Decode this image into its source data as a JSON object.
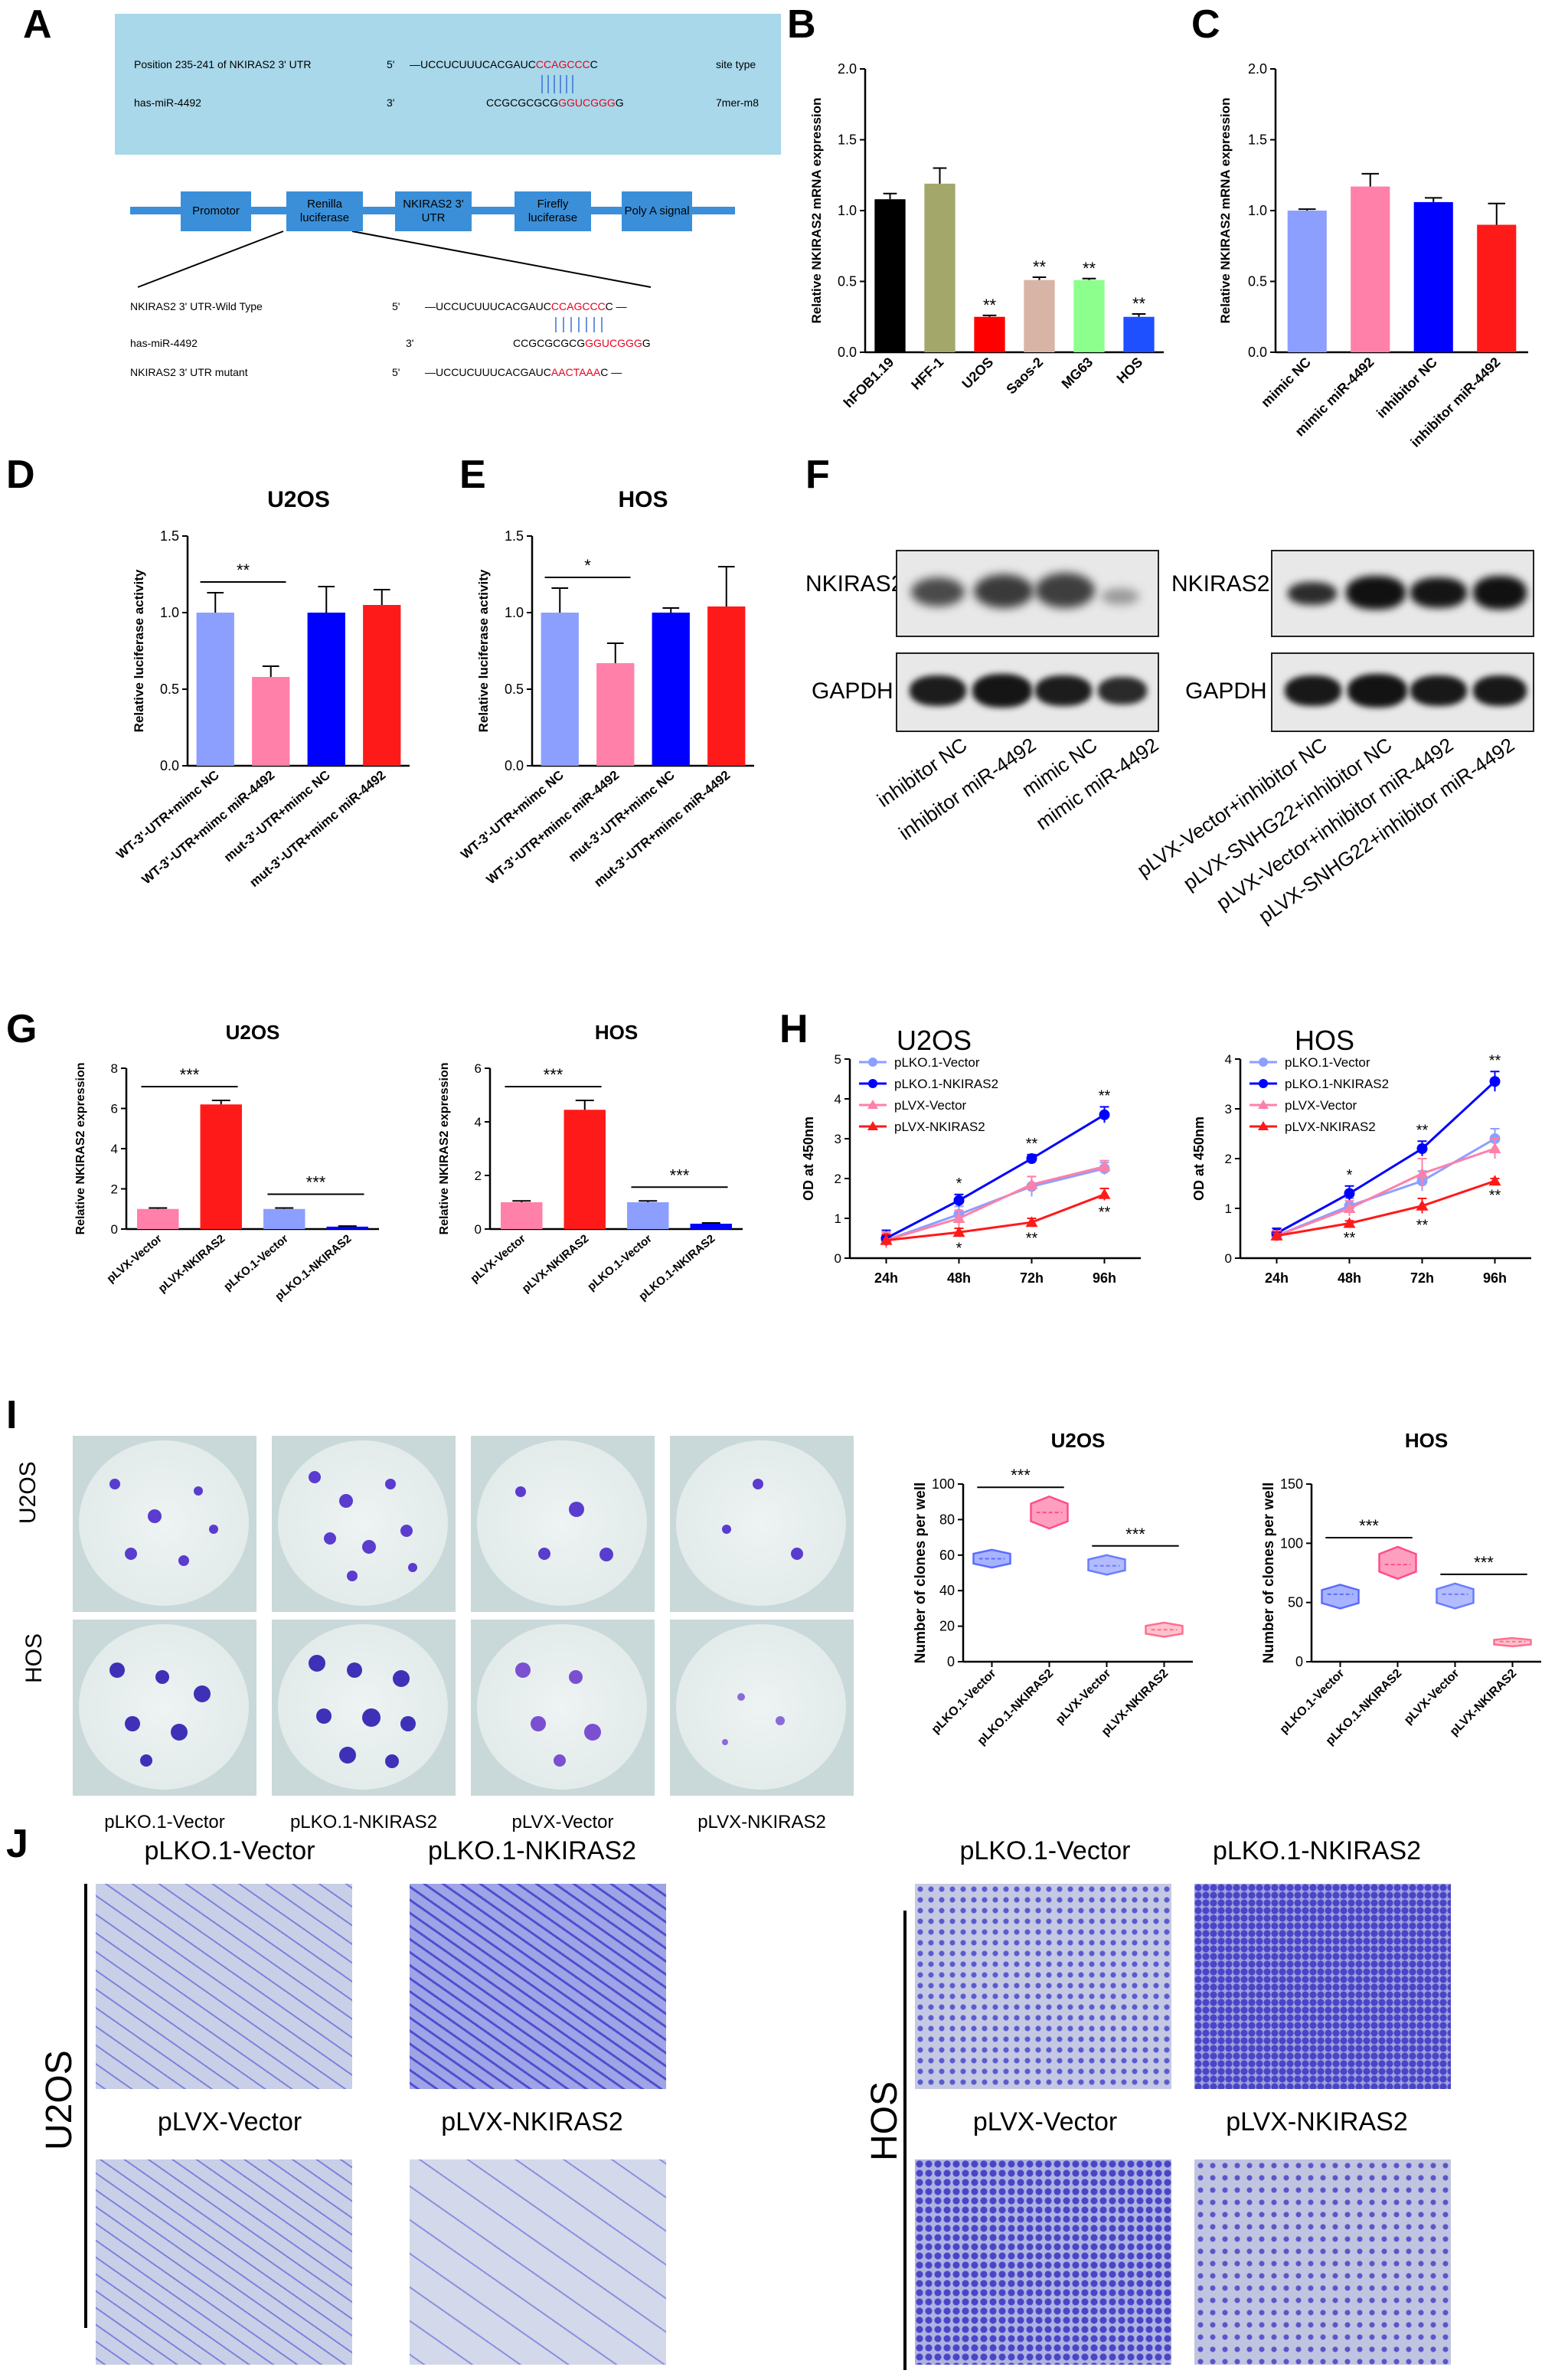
{
  "panel_labels": [
    "A",
    "B",
    "C",
    "D",
    "E",
    "F",
    "G",
    "H",
    "I",
    "J"
  ],
  "panelA": {
    "box_row1": {
      "label": "Position 235-241 of NKIRAS2  3' UTR",
      "end": "5'",
      "seq_black": "—UCCUCUUUCACGAUC",
      "seq_red": "CCAGCCC",
      "seq_tail": "C",
      "site_type": "site type"
    },
    "box_row2": {
      "label": "has-miR-4492",
      "end": "3'",
      "seq_black": "CCGCGCGCG",
      "seq_red": "GGUCGGG",
      "seq_tail": "G",
      "site_type": "7mer-m8"
    },
    "construct_blocks": [
      "Promotor",
      "Renilla luciferase",
      "NKIRAS2 3' UTR",
      "Firefly luciferase",
      "Poly A signal"
    ],
    "rows": [
      {
        "label": "NKIRAS2  3'  UTR-Wild Type",
        "end": "5'",
        "seq_black": "—UCCUCUUUCACGAUC",
        "seq_red": "CCAGCCC",
        "seq_tail": "C —"
      },
      {
        "label": "has-miR-4492",
        "end": "3'",
        "seq_black": "CCGCGCGCG",
        "seq_red": "GGUCGGG",
        "seq_tail": "G"
      },
      {
        "label": "NKIRAS2  3'  UTR mutant",
        "end": "5'",
        "seq_black": "—UCCUCUUUCACGAUC",
        "seq_red": "AACTAAA",
        "seq_tail": "C —"
      }
    ]
  },
  "chart_data": [
    {
      "id": "B",
      "type": "bar",
      "ylabel": "Relative NKIRAS2 mRNA expression",
      "ylim": [
        0,
        2.0
      ],
      "yticks": [
        0,
        0.5,
        1.0,
        1.5,
        2.0
      ],
      "categories": [
        "hFOB1.19",
        "HFF-1",
        "U2OS",
        "Saos-2",
        "MG63",
        "HOS"
      ],
      "values": [
        1.08,
        1.19,
        0.25,
        0.51,
        0.51,
        0.25
      ],
      "errors": [
        0.04,
        0.11,
        0.01,
        0.02,
        0.01,
        0.02
      ],
      "colors": [
        "#000000",
        "#a3a86a",
        "#ff0000",
        "#d8b4a7",
        "#8cff8c",
        "#1e50ff"
      ],
      "annotations": [
        "",
        "",
        "**",
        "**",
        "**",
        "**"
      ]
    },
    {
      "id": "C",
      "type": "bar",
      "ylabel": "Relative NKIRAS2 mRNA expression",
      "ylim": [
        0,
        2.0
      ],
      "yticks": [
        0,
        0.5,
        1.0,
        1.5,
        2.0
      ],
      "categories": [
        "mimic NC",
        "mimic miR-4492",
        "inhibitor NC",
        "inhibitor miR-4492"
      ],
      "values": [
        1.0,
        1.17,
        1.06,
        0.9
      ],
      "errors": [
        0.01,
        0.09,
        0.03,
        0.15
      ],
      "colors": [
        "#8c9fff",
        "#ff80a8",
        "#0000ff",
        "#ff1a1a"
      ],
      "annotations": [
        "",
        "",
        "",
        ""
      ]
    },
    {
      "id": "D",
      "type": "bar",
      "title": "U2OS",
      "ylabel": "Relative luciferase activity",
      "ylim": [
        0,
        1.5
      ],
      "yticks": [
        0.0,
        0.5,
        1.0,
        1.5
      ],
      "categories": [
        "WT-3'-UTR+mimc NC",
        "WT-3'-UTR+mimc miR-4492",
        "mut-3'-UTR+mimc NC",
        "mut-3'-UTR+mimc miR-4492"
      ],
      "values": [
        1.0,
        0.58,
        1.0,
        1.05
      ],
      "errors": [
        0.13,
        0.07,
        0.17,
        0.1
      ],
      "colors": [
        "#8c9fff",
        "#ff80a8",
        "#0000ff",
        "#ff1a1a"
      ],
      "bracket": {
        "from": 0,
        "to": 1,
        "label": "**"
      }
    },
    {
      "id": "E",
      "type": "bar",
      "title": "HOS",
      "ylabel": "Relative luciferase activity",
      "ylim": [
        0,
        1.5
      ],
      "yticks": [
        0.0,
        0.5,
        1.0,
        1.5
      ],
      "categories": [
        "WT-3'-UTR+mimc NC",
        "WT-3'-UTR+mimc miR-4492",
        "mut-3'-UTR+mimc NC",
        "mut-3'-UTR+mimc miR-4492"
      ],
      "values": [
        1.0,
        0.67,
        1.0,
        1.04
      ],
      "errors": [
        0.16,
        0.13,
        0.03,
        0.26
      ],
      "colors": [
        "#8c9fff",
        "#ff80a8",
        "#0000ff",
        "#ff1a1a"
      ],
      "bracket": {
        "from": 0,
        "to": 1,
        "label": "*"
      }
    },
    {
      "id": "G1",
      "type": "bar",
      "title": "U2OS",
      "ylabel": "Relative NKIRAS2 expression",
      "ylim": [
        0,
        8
      ],
      "yticks": [
        0,
        2,
        4,
        6,
        8
      ],
      "categories": [
        "pLVX-Vector",
        "pLVX-NKIRAS2",
        "pLKO.1-Vector",
        "pLKO.1-NKIRAS2"
      ],
      "values": [
        1.0,
        6.2,
        1.0,
        0.12
      ],
      "errors": [
        0.05,
        0.2,
        0.05,
        0.03
      ],
      "colors": [
        "#ff80a8",
        "#ff1a1a",
        "#8c9fff",
        "#0000ff"
      ],
      "brackets": [
        {
          "from": 0,
          "to": 1,
          "label": "***"
        },
        {
          "from": 2,
          "to": 3,
          "label": "***"
        }
      ]
    },
    {
      "id": "G2",
      "type": "bar",
      "title": "HOS",
      "ylabel": "Relative NKIRAS2 expression",
      "ylim": [
        0,
        6
      ],
      "yticks": [
        0,
        2,
        4,
        6
      ],
      "categories": [
        "pLVX-Vector",
        "pLVX-NKIRAS2",
        "pLKO.1-Vector",
        "pLKO.1-NKIRAS2"
      ],
      "values": [
        1.0,
        4.45,
        1.0,
        0.2
      ],
      "errors": [
        0.05,
        0.35,
        0.05,
        0.03
      ],
      "colors": [
        "#ff80a8",
        "#ff1a1a",
        "#8c9fff",
        "#0000ff"
      ],
      "brackets": [
        {
          "from": 0,
          "to": 1,
          "label": "***"
        },
        {
          "from": 2,
          "to": 3,
          "label": "***"
        }
      ]
    },
    {
      "id": "H1",
      "type": "line",
      "title": "U2OS",
      "ylabel": "OD at 450nm",
      "ylim": [
        0,
        5
      ],
      "yticks": [
        0,
        1,
        2,
        3,
        4,
        5
      ],
      "x": [
        "24h",
        "48h",
        "72h",
        "96h"
      ],
      "series": [
        {
          "name": "pLKO.1-Vector",
          "color": "#8c9fff",
          "marker": "circle",
          "values": [
            0.45,
            1.1,
            1.8,
            2.25
          ],
          "errors": [
            0.2,
            0.2,
            0.25,
            0.15
          ]
        },
        {
          "name": "pLKO.1-NKIRAS2",
          "color": "#0000ff",
          "marker": "circle",
          "values": [
            0.5,
            1.45,
            2.5,
            3.6
          ],
          "errors": [
            0.2,
            0.15,
            0.1,
            0.2
          ]
        },
        {
          "name": "pLVX-Vector",
          "color": "#ff80a8",
          "marker": "triangle",
          "values": [
            0.45,
            1.0,
            1.85,
            2.3
          ],
          "errors": [
            0.2,
            0.2,
            0.2,
            0.15
          ]
        },
        {
          "name": "pLVX-NKIRAS2",
          "color": "#ff1a1a",
          "marker": "triangle",
          "values": [
            0.45,
            0.65,
            0.9,
            1.6
          ],
          "errors": [
            0.15,
            0.1,
            0.1,
            0.15
          ]
        }
      ],
      "annot_top": [
        "",
        "*",
        "**",
        "**"
      ],
      "annot_bottom": [
        "",
        "*",
        "**",
        "**"
      ]
    },
    {
      "id": "H2",
      "type": "line",
      "title": "HOS",
      "ylabel": "OD at 450nm",
      "ylim": [
        0,
        4
      ],
      "yticks": [
        0,
        1,
        2,
        3,
        4
      ],
      "x": [
        "24h",
        "48h",
        "72h",
        "96h"
      ],
      "series": [
        {
          "name": "pLKO.1-Vector",
          "color": "#8c9fff",
          "marker": "circle",
          "values": [
            0.45,
            1.05,
            1.55,
            2.4
          ],
          "errors": [
            0.1,
            0.15,
            0.2,
            0.2
          ]
        },
        {
          "name": "pLKO.1-NKIRAS2",
          "color": "#0000ff",
          "marker": "circle",
          "values": [
            0.5,
            1.3,
            2.2,
            3.55
          ],
          "errors": [
            0.1,
            0.15,
            0.15,
            0.2
          ]
        },
        {
          "name": "pLVX-Vector",
          "color": "#ff80a8",
          "marker": "triangle",
          "values": [
            0.45,
            1.0,
            1.7,
            2.2
          ],
          "errors": [
            0.1,
            0.15,
            0.3,
            0.2
          ]
        },
        {
          "name": "pLVX-NKIRAS2",
          "color": "#ff1a1a",
          "marker": "triangle",
          "values": [
            0.45,
            0.7,
            1.05,
            1.55
          ],
          "errors": [
            0.05,
            0.05,
            0.15,
            0.05
          ]
        }
      ],
      "annot_top": [
        "",
        "*",
        "**",
        "**"
      ],
      "annot_bottom": [
        "",
        "**",
        "**",
        "**"
      ]
    },
    {
      "id": "I1",
      "type": "violin",
      "title": "U2OS",
      "ylabel": "Number of clones per well",
      "ylim": [
        0,
        100
      ],
      "yticks": [
        0,
        20,
        40,
        60,
        80,
        100
      ],
      "categories": [
        "pLKO.1-Vector",
        "pLKO.1-NKIRAS2",
        "pLVX-Vector",
        "pLVX-NKIRAS2"
      ],
      "ranges": [
        [
          53,
          63
        ],
        [
          75,
          93
        ],
        [
          49,
          60
        ],
        [
          14,
          22
        ]
      ],
      "medians": [
        58,
        84,
        54,
        18
      ],
      "colors": [
        "#5a6cff",
        "#ff4d88",
        "#6b7dff",
        "#ff6f8f"
      ],
      "fills": [
        "#a8b3ff",
        "#ff9fbf",
        "#b3bcff",
        "#ffc2cf"
      ],
      "brackets": [
        {
          "from": 0,
          "to": 1,
          "label": "***"
        },
        {
          "from": 2,
          "to": 3,
          "label": "***"
        }
      ]
    },
    {
      "id": "I2",
      "type": "violin",
      "title": "HOS",
      "ylabel": "Number of clones per well",
      "ylim": [
        0,
        150
      ],
      "yticks": [
        0,
        50,
        100,
        150
      ],
      "categories": [
        "pLKO.1-Vector",
        "pLKO.1-NKIRAS2",
        "pLVX-Vector",
        "pLVX-NKIRAS2"
      ],
      "ranges": [
        [
          45,
          65
        ],
        [
          70,
          97
        ],
        [
          45,
          66
        ],
        [
          13,
          20
        ]
      ],
      "medians": [
        57,
        82,
        57,
        17
      ],
      "colors": [
        "#5a6cff",
        "#ff4d88",
        "#6b7dff",
        "#ff6f8f"
      ],
      "fills": [
        "#a8b3ff",
        "#ff9fbf",
        "#b3bcff",
        "#ffc2cf"
      ],
      "brackets": [
        {
          "from": 0,
          "to": 1,
          "label": "***"
        },
        {
          "from": 2,
          "to": 3,
          "label": "***"
        }
      ]
    }
  ],
  "panelF": {
    "left_protein": "NKIRAS2",
    "left_loading": "GAPDH",
    "left_lanes": [
      "inhibitor NC",
      "inhibitor miR-4492",
      "mimic NC",
      "mimic miR-4492"
    ],
    "right_protein": "NKIRAS2",
    "right_loading": "GAPDH",
    "right_lanes": [
      "pLVX-Vector+inhibitor NC",
      "pLVX-SNHG22+inhibitor NC",
      "pLVX-Vector+inhibitor miR-4492",
      "pLVX-SNHG22+inhibitor miR-4492"
    ]
  },
  "panelI": {
    "row_labels": [
      "U2OS",
      "HOS"
    ],
    "col_labels": [
      "pLKO.1-Vector",
      "pLKO.1-NKIRAS2",
      "pLVX-Vector",
      "pLVX-NKIRAS2"
    ]
  },
  "panelJ": {
    "left_cell": "U2OS",
    "right_cell": "HOS",
    "top_labels": [
      "pLKO.1-Vector",
      "pLKO.1-NKIRAS2"
    ],
    "bottom_labels": [
      "pLVX-Vector",
      "pLVX-NKIRAS2"
    ]
  }
}
